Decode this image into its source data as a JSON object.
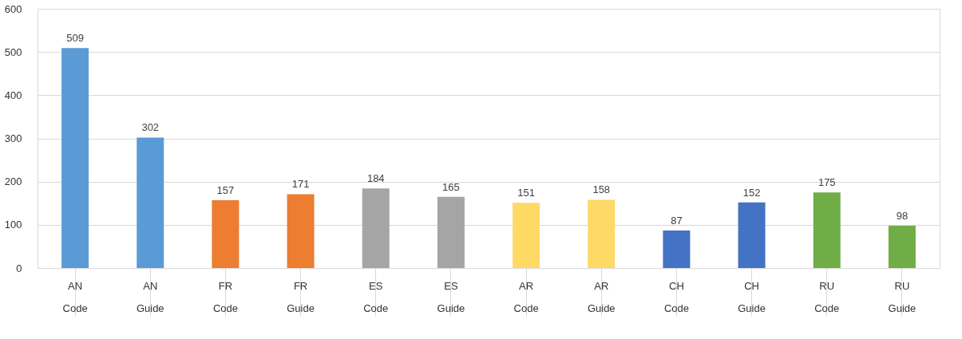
{
  "chart_data": {
    "type": "bar",
    "categories": [
      "AN\nCode",
      "AN\nGuide",
      "FR\nCode",
      "FR\nGuide",
      "ES\nCode",
      "ES\nGuide",
      "AR\nCode",
      "AR\nGuide",
      "CH\nCode",
      "CH\nGuide",
      "RU\nCode",
      "RU\nGuide"
    ],
    "values": [
      509,
      302,
      157,
      171,
      184,
      165,
      151,
      158,
      87,
      152,
      175,
      98
    ],
    "colors": [
      "#5b9bd5",
      "#5b9bd5",
      "#ed7d31",
      "#ed7d31",
      "#a5a5a5",
      "#a5a5a5",
      "#ffd966",
      "#ffd966",
      "#4472c4",
      "#4472c4",
      "#70ad47",
      "#70ad47"
    ],
    "ylim": [
      0,
      600
    ],
    "yticks": [
      0,
      100,
      200,
      300,
      400,
      500,
      600
    ],
    "grid": "y",
    "data_labels": true
  }
}
